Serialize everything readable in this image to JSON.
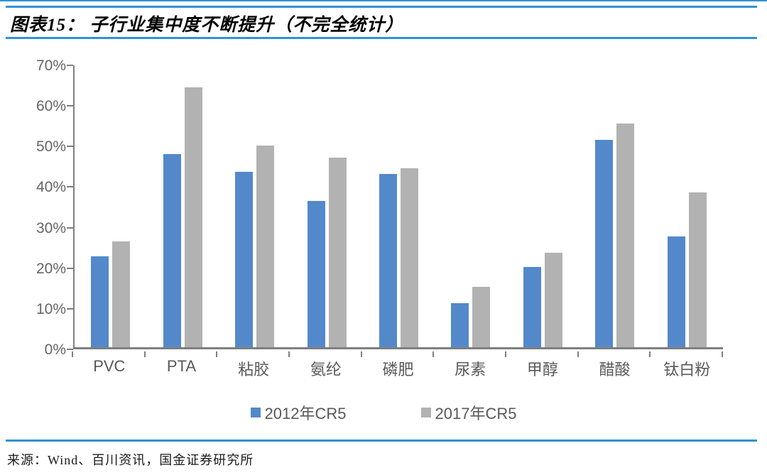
{
  "header": {
    "title": "图表15： 子行业集中度不断提升（不完全统计）"
  },
  "theme": {
    "rule_blue": "#2e93d1",
    "axis_gray": "#7f7f7f",
    "label_gray": "#595959"
  },
  "chart_data": {
    "type": "bar",
    "categories": [
      "PVC",
      "PTA",
      "粘胶",
      "氨纶",
      "磷肥",
      "尿素",
      "甲醇",
      "醋酸",
      "钛白粉"
    ],
    "series": [
      {
        "name": "2012年CR5",
        "color": "#5389cb",
        "values": [
          22.5,
          48.0,
          43.5,
          36.3,
          43.0,
          11.0,
          20.0,
          51.5,
          27.5
        ]
      },
      {
        "name": "2017年CR5",
        "color": "#b2b2b2",
        "values": [
          26.3,
          64.5,
          50.0,
          47.0,
          44.5,
          15.0,
          23.5,
          55.5,
          38.5
        ]
      }
    ],
    "unit": "%",
    "ylim": [
      0,
      70
    ],
    "y_tick_step": 10,
    "y_tick_labels": [
      "0%",
      "10%",
      "20%",
      "30%",
      "40%",
      "50%",
      "60%",
      "70%"
    ],
    "grid": false,
    "legend_position": "bottom"
  },
  "footer": {
    "source": "来源：Wind、百川资讯，国金证券研究所"
  }
}
